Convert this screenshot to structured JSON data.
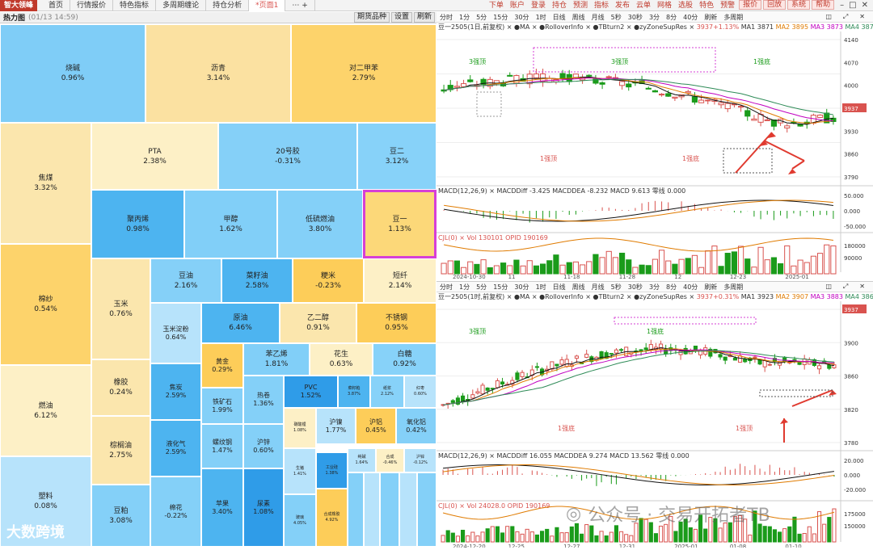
{
  "menubar": {
    "logo": "智大领峰",
    "tabs": [
      "首页",
      "行情报价",
      "特色指标",
      "多周期缠论",
      "持仓分析",
      "*页面1"
    ],
    "tab_extra": "⋯ +",
    "right": [
      "下单",
      "账户",
      "登录",
      "持仓",
      "预测",
      "指标",
      "发布",
      "云单",
      "网格",
      "选股",
      "特色",
      "预警"
    ],
    "boxes": [
      "报价",
      "回放",
      "系统",
      "帮助"
    ]
  },
  "heat": {
    "title": "热力图",
    "date": "(01/13 14:59)",
    "buttons": [
      "期货品种",
      "设置",
      "刷新"
    ]
  },
  "treemap": [
    {
      "n": "烧碱",
      "p": "0.96%",
      "c": "#7fcdf7"
    },
    {
      "n": "沥青",
      "p": "3.14%",
      "c": "#fbe1a1"
    },
    {
      "n": "对二甲苯",
      "p": "2.79%",
      "c": "#fdd36b"
    },
    {
      "n": "焦煤",
      "p": "3.32%",
      "c": "#fbe6ad"
    },
    {
      "n": "PTA",
      "p": "2.38%",
      "c": "#fdf0c6"
    },
    {
      "n": "20号胶",
      "p": "-0.31%",
      "c": "#85d0f8"
    },
    {
      "n": "豆二",
      "p": "3.12%",
      "c": "#87d2f9"
    },
    {
      "n": "聚丙烯",
      "p": "0.98%",
      "c": "#4db4f0"
    },
    {
      "n": "甲醇",
      "p": "1.62%",
      "c": "#81cff8"
    },
    {
      "n": "低硫燃油",
      "p": "3.80%",
      "c": "#84d0f8"
    },
    {
      "n": "豆一",
      "p": "1.13%",
      "c": "#fcd879"
    },
    {
      "n": "棉纱",
      "p": "0.54%",
      "c": "#fdd36b"
    },
    {
      "n": "玉米",
      "p": "0.76%",
      "c": "#fbe6ad"
    },
    {
      "n": "豆油",
      "p": "2.16%",
      "c": "#85d0f8"
    },
    {
      "n": "菜籽油",
      "p": "2.58%",
      "c": "#4db4f0"
    },
    {
      "n": "粳米",
      "p": "-0.23%",
      "c": "#fdcd59"
    },
    {
      "n": "短纤",
      "p": "2.14%",
      "c": "#fdf0c6"
    },
    {
      "n": "玉米淀粉",
      "p": "0.64%",
      "c": "#b7e3fb"
    },
    {
      "n": "原油",
      "p": "6.46%",
      "c": "#4db4f0"
    },
    {
      "n": "乙二醇",
      "p": "0.91%",
      "c": "#fbe6ad"
    },
    {
      "n": "不锈钢",
      "p": "0.95%",
      "c": "#fdcd59"
    },
    {
      "n": "橡胶",
      "p": "0.24%",
      "c": "#fbe6ad"
    },
    {
      "n": "黄金",
      "p": "0.29%",
      "c": "#fdcd59"
    },
    {
      "n": "苯乙烯",
      "p": "1.81%",
      "c": "#81cff8"
    },
    {
      "n": "花生",
      "p": "0.63%",
      "c": "#fdf0c6"
    },
    {
      "n": "白糖",
      "p": "0.92%",
      "c": "#87d2f9"
    },
    {
      "n": "燃油",
      "p": "6.12%",
      "c": "#fdf0c6"
    },
    {
      "n": "焦炭",
      "p": "2.59%",
      "c": "#4db4f0"
    },
    {
      "n": "铁矿石",
      "p": "1.99%",
      "c": "#84d0f8"
    },
    {
      "n": "热卷",
      "p": "1.36%",
      "c": "#84d0f8"
    },
    {
      "n": "PVC",
      "p": "1.52%",
      "c": "#2f9ce8"
    },
    {
      "n": "菜籽粕",
      "p": "3.87%",
      "c": "#4db4f0"
    },
    {
      "n": "纸浆",
      "p": "2.12%",
      "c": "#87d2f9"
    },
    {
      "n": "红枣",
      "p": "0.60%",
      "c": "#b7e3fb"
    },
    {
      "n": "棕榈油",
      "p": "2.75%",
      "c": "#fbe6ad"
    },
    {
      "n": "碳酸锂",
      "p": "1.08%",
      "c": "#fdf0c6"
    },
    {
      "n": "沪镍",
      "p": "1.77%",
      "c": "#b7e3fb"
    },
    {
      "n": "沪铝",
      "p": "0.45%",
      "c": "#fdcd59"
    },
    {
      "n": "氧化铝",
      "p": "0.42%",
      "c": "#84d0f8"
    },
    {
      "n": "液化气",
      "p": "2.59%",
      "c": "#4db4f0"
    },
    {
      "n": "螺纹钢",
      "p": "1.47%",
      "c": "#84d0f8"
    },
    {
      "n": "沪锌",
      "p": "0.60%",
      "c": "#84d0f8"
    },
    {
      "n": "纯碱",
      "p": "1.64%",
      "c": "#b7e3fb"
    },
    {
      "n": "合成",
      "p": "-0.46%",
      "c": "#fdf0c6"
    },
    {
      "n": "沪锌",
      "p": "-0.12%",
      "c": "#b7e3fb"
    },
    {
      "n": "塑料",
      "p": "0.08%",
      "c": "#b7e3fb"
    },
    {
      "n": "豆粕",
      "p": "3.08%",
      "c": "#84d0f8"
    },
    {
      "n": "棉花",
      "p": "-0.22%",
      "c": "#84d0f8"
    },
    {
      "n": "苹果",
      "p": "3.40%",
      "c": "#4db4f0"
    },
    {
      "n": "尿素",
      "p": "1.08%",
      "c": "#2f9ce8"
    },
    {
      "n": "生猪",
      "p": "1.41%",
      "c": "#b7e3fb"
    },
    {
      "n": "工业硅",
      "p": "1.38%",
      "c": "#2f9ce8"
    },
    {
      "n": "玻璃",
      "p": "4.05%",
      "c": "#84d0f8"
    },
    {
      "n": "合成橡胶",
      "p": "4.92%",
      "c": "#fdcd59"
    }
  ],
  "chart1": {
    "toolbar": [
      "分时",
      "1分",
      "5分",
      "15分",
      "30分",
      "1时",
      "日线",
      "周线",
      "月线",
      "5秒",
      "30秒",
      "3分",
      "8分",
      "40分",
      "刷新",
      "多周期"
    ],
    "legend": {
      "contract": "豆一2505(1日,前复权)",
      "mods": "× ●MA × ●RolloverInfo × ●TBturn2 × ●zyZoneSupRes ×",
      "price": "3937+1.13%",
      "ma1": "MA1 3871",
      "ma2": "MA2 3895",
      "ma3": "MA3 3873",
      "ma4": "MA4 3874"
    },
    "yticks": [
      "4140",
      "4070",
      "4000",
      "3937",
      "3930",
      "3860",
      "3790"
    ],
    "macd": "MACD(12,26,9) × MACDDiff -3.425  MACDDEA -8.232  MACD 9.613  零线 0.000",
    "macdticks": [
      "50.000",
      "0.000",
      "-50.000"
    ],
    "vol": "CJL(0) × Vol 130101  OPID 190169",
    "volticks": [
      "180000",
      "90000"
    ],
    "dates": [
      "2024-10-30",
      "11",
      "11-18",
      "11-28",
      "12",
      "12-23",
      "2025-01"
    ],
    "labels": [
      "3强顶",
      "1强顶",
      "3强顶",
      "1强底",
      "1强底"
    ]
  },
  "chart2": {
    "legend": {
      "contract": "豆一2505(1时,前复权)",
      "mods": "× ●MA × ●RolloverInfo × ●TBturn2 × ●zyZoneSupRes ×",
      "price": "3937+0.31%",
      "ma1": "MA1 3923",
      "ma2": "MA2 3907",
      "ma3": "MA3 3883",
      "ma4": "MA4 3868"
    },
    "yticks": [
      "3937",
      "3900",
      "3860",
      "3820",
      "3780"
    ],
    "macd": "MACD(12,26,9) × MACDDiff 16.055  MACDDEA 9.274  MACD 13.562  零线 0.000",
    "macdticks": [
      "20.000",
      "0.000",
      "-20.000"
    ],
    "vol": "CJL(0) × Vol 24028.0  OPID 190169",
    "volticks": [
      "175000",
      "150000"
    ],
    "dates": [
      "2024-12-20",
      "12-25",
      "12-27",
      "12-31",
      "2025-01",
      "01-08",
      "01-10"
    ],
    "labels": [
      "3强顶",
      "1强底",
      "1强底",
      "1强顶"
    ]
  },
  "watermark": {
    "text": "公众号 · 交易开拓者TB",
    "corner": "大数跨境"
  }
}
